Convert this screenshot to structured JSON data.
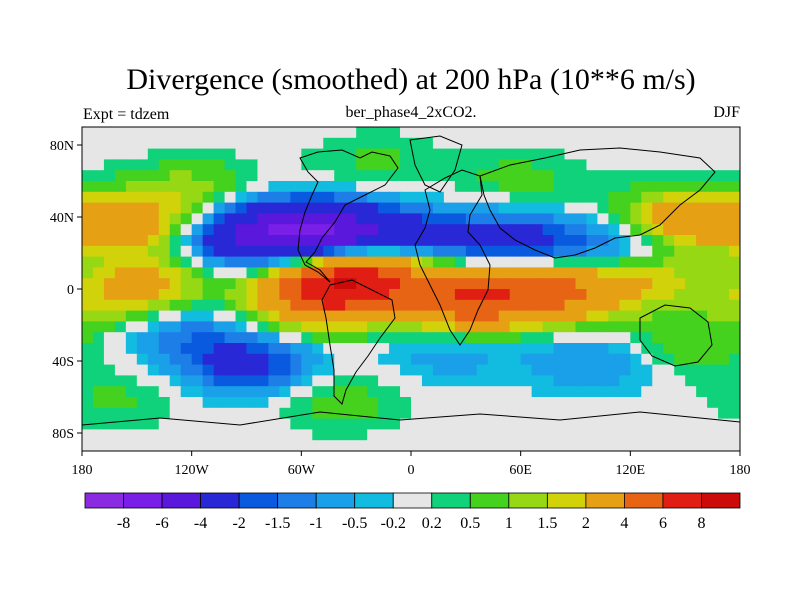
{
  "chart_data": {
    "type": "contour-map",
    "title": "Divergence (smoothed) at 200 hPa (10**6 m/s)",
    "left_label": "Expt = tdzem",
    "center_label": "ber_phase4_2xCO2.",
    "right_label": "DJF",
    "xaxis": {
      "range": [
        -180,
        180
      ],
      "ticks": [
        -180,
        -120,
        -60,
        0,
        60,
        120,
        180
      ],
      "tick_labels": [
        "180",
        "120W",
        "60W",
        "0",
        "60E",
        "120E",
        "180"
      ]
    },
    "yaxis": {
      "range": [
        -90,
        90
      ],
      "ticks": [
        80,
        40,
        0,
        -40,
        -80
      ],
      "tick_labels": [
        "80N",
        "40N",
        "0",
        "40S",
        "80S"
      ]
    },
    "colorbar": {
      "labels": [
        "-8",
        "-6",
        "-4",
        "-2",
        "-1.5",
        "-1",
        "-0.5",
        "-0.2",
        "0.2",
        "0.5",
        "1",
        "1.5",
        "2",
        "4",
        "6",
        "8"
      ],
      "levels": [
        -8,
        -6,
        -4,
        -2,
        -1.5,
        -1,
        -0.5,
        -0.2,
        0.2,
        0.5,
        1,
        1.5,
        2,
        4,
        6,
        8
      ],
      "colors": [
        "#8a2be2",
        "#7a1fe8",
        "#5a18dc",
        "#2828d6",
        "#0a5ae0",
        "#1e7ee8",
        "#1aa0e8",
        "#12bce0",
        "#e6e6e6",
        "#10d27a",
        "#44d21e",
        "#96d814",
        "#d2d20a",
        "#e6a014",
        "#e66414",
        "#e01e14",
        "#cc0a0a"
      ]
    },
    "fields": [
      {
        "lon": -150,
        "lat": 35,
        "value": 2.6
      },
      {
        "lon": -140,
        "lat": 5,
        "value": 1.7
      },
      {
        "lon": -100,
        "lat": 28,
        "value": -2.2
      },
      {
        "lon": -70,
        "lat": 32,
        "value": -3.4
      },
      {
        "lon": -40,
        "lat": 30,
        "value": -4.5
      },
      {
        "lon": -30,
        "lat": 8,
        "value": 6.0
      },
      {
        "lon": -50,
        "lat": -5,
        "value": 4.5
      },
      {
        "lon": -90,
        "lat": -42,
        "value": -2.4
      },
      {
        "lon": -130,
        "lat": -22,
        "value": -1.3
      },
      {
        "lon": -160,
        "lat": -8,
        "value": 1.5
      },
      {
        "lon": -40,
        "lat": -62,
        "value": 0.8
      },
      {
        "lon": 30,
        "lat": -5,
        "value": 5.5
      },
      {
        "lon": 80,
        "lat": -2,
        "value": 4.2
      },
      {
        "lon": 130,
        "lat": 8,
        "value": 2.1
      },
      {
        "lon": 10,
        "lat": 28,
        "value": -1.8
      },
      {
        "lon": 60,
        "lat": 25,
        "value": -2.5
      },
      {
        "lon": 120,
        "lat": 22,
        "value": -2.0
      },
      {
        "lon": 150,
        "lat": 38,
        "value": 3.2
      },
      {
        "lon": 60,
        "lat": 60,
        "value": 0.7
      },
      {
        "lon": -160,
        "lat": -60,
        "value": 0.6
      },
      {
        "lon": 100,
        "lat": -40,
        "value": -1.1
      },
      {
        "lon": 20,
        "lat": -35,
        "value": -0.8
      },
      {
        "lon": 150,
        "lat": -30,
        "value": 1.0
      },
      {
        "lon": -20,
        "lat": 70,
        "value": 0.6
      },
      {
        "lon": -120,
        "lat": 55,
        "value": 1.2
      }
    ]
  }
}
